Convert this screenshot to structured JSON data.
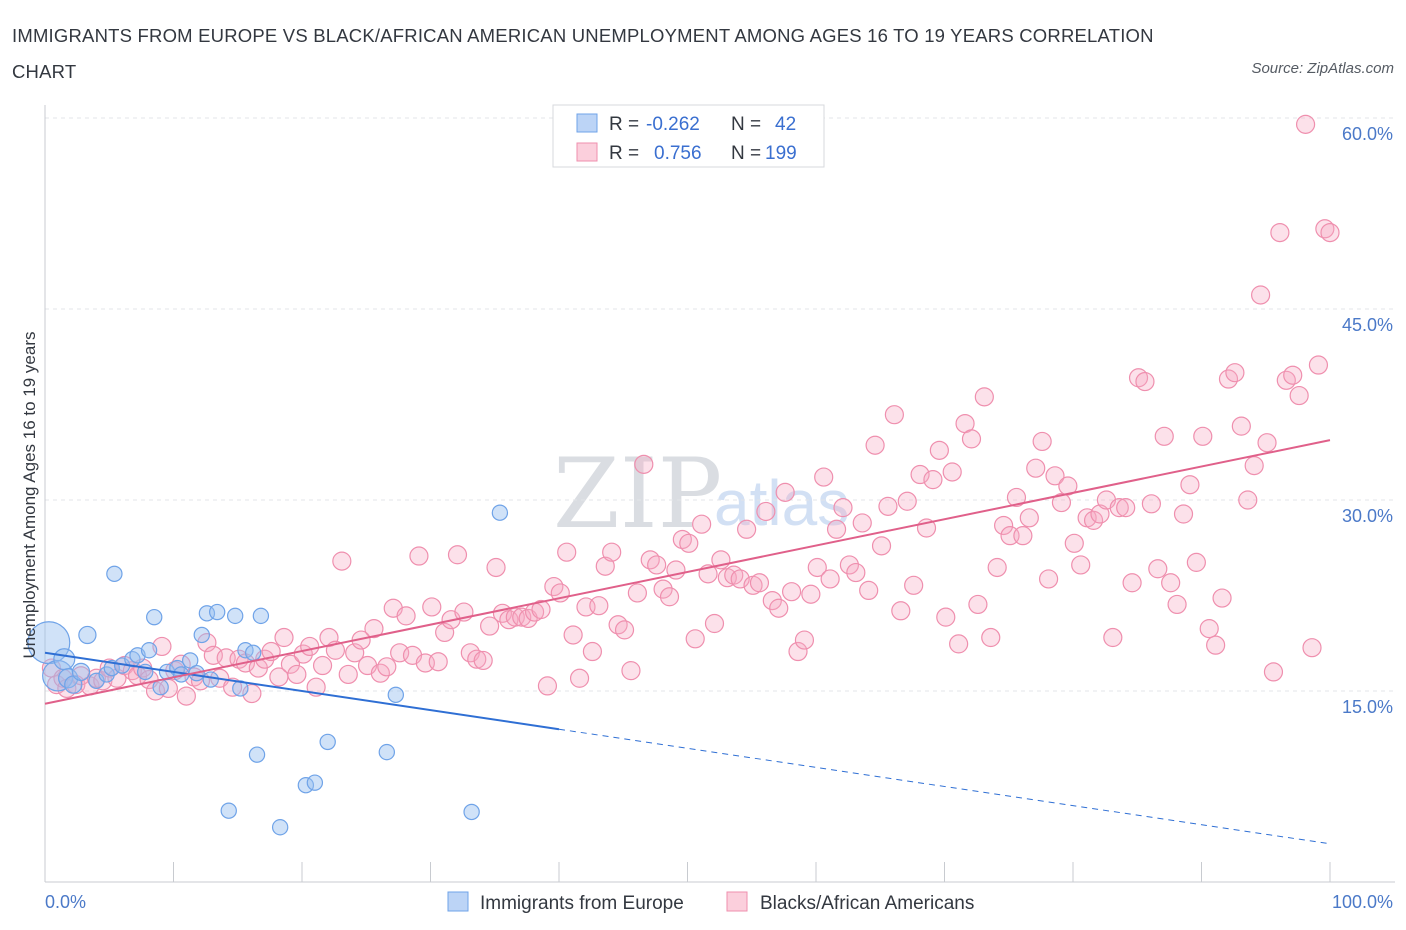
{
  "title": "IMMIGRANTS FROM EUROPE VS BLACK/AFRICAN AMERICAN UNEMPLOYMENT AMONG AGES 16 TO 19 YEARS CORRELATION CHART",
  "source": "Source: ZipAtlas.com",
  "watermark": {
    "zip": "ZIP",
    "atlas": "atlas"
  },
  "colors": {
    "blue": "#6fa3e8",
    "blue_line": "#2f6fd4",
    "pink": "#ef8fae",
    "pink_line": "#e0608a",
    "tick": "#4b79c8"
  },
  "legend": {
    "rows": [
      {
        "r_label": "R =",
        "r_value": "-0.262",
        "n_label": "N =",
        "n_value": "42"
      },
      {
        "r_label": "R =",
        "r_value": "0.756",
        "n_label": "N =",
        "n_value": "199"
      }
    ]
  },
  "chart_data": {
    "type": "scatter",
    "title": "IMMIGRANTS FROM EUROPE VS BLACK/AFRICAN AMERICAN UNEMPLOYMENT AMONG AGES 16 TO 19 YEARS CORRELATION CHART",
    "xlabel": "",
    "ylabel": "Unemployment Among Ages 16 to 19 years",
    "xlim": [
      0,
      100
    ],
    "ylim": [
      0,
      60
    ],
    "x_tick_labels": [
      "0.0%",
      "100.0%"
    ],
    "y_ticks": [
      15,
      30,
      45,
      60
    ],
    "y_tick_labels": [
      "15.0%",
      "30.0%",
      "45.0%",
      "60.0%"
    ],
    "grid": true,
    "legend_position": "top-center",
    "series": [
      {
        "name": "Immigrants from Europe",
        "R": -0.262,
        "N": 42,
        "trend": {
          "x0": 0,
          "y0": 18.0,
          "x1": 40,
          "y1": 12.0,
          "dash_to_x": 100,
          "dash_to_y": 3.0
        },
        "points": [
          [
            0.3,
            18.8,
            2.2
          ],
          [
            1.0,
            16.2,
            1.6
          ],
          [
            1.5,
            17.5,
            1.1
          ],
          [
            1.8,
            16.0,
            1.0
          ],
          [
            2.2,
            15.5,
            0.9
          ],
          [
            2.8,
            16.5,
            0.9
          ],
          [
            3.3,
            19.4,
            0.9
          ],
          [
            4.0,
            15.8,
            0.8
          ],
          [
            4.8,
            16.3,
            0.8
          ],
          [
            5.2,
            16.8,
            0.8
          ],
          [
            5.4,
            24.2,
            0.8
          ],
          [
            6.0,
            17.0,
            0.8
          ],
          [
            6.8,
            17.5,
            0.8
          ],
          [
            7.2,
            17.8,
            0.8
          ],
          [
            7.8,
            16.5,
            0.8
          ],
          [
            8.1,
            18.2,
            0.8
          ],
          [
            8.5,
            20.8,
            0.8
          ],
          [
            9.0,
            15.3,
            0.8
          ],
          [
            9.5,
            16.5,
            0.8
          ],
          [
            10.3,
            16.8,
            0.8
          ],
          [
            10.6,
            16.3,
            0.8
          ],
          [
            11.3,
            17.4,
            0.8
          ],
          [
            11.8,
            16.4,
            0.8
          ],
          [
            12.2,
            19.4,
            0.8
          ],
          [
            12.6,
            21.1,
            0.8
          ],
          [
            12.9,
            15.9,
            0.8
          ],
          [
            13.4,
            21.2,
            0.8
          ],
          [
            14.3,
            5.6,
            0.8
          ],
          [
            14.8,
            20.9,
            0.8
          ],
          [
            15.2,
            15.2,
            0.8
          ],
          [
            15.6,
            18.2,
            0.8
          ],
          [
            16.2,
            18.0,
            0.8
          ],
          [
            16.5,
            10.0,
            0.8
          ],
          [
            16.8,
            20.9,
            0.8
          ],
          [
            18.3,
            4.3,
            0.8
          ],
          [
            20.3,
            7.6,
            0.8
          ],
          [
            21.0,
            7.8,
            0.8
          ],
          [
            22.0,
            11.0,
            0.8
          ],
          [
            26.6,
            10.2,
            0.8
          ],
          [
            27.3,
            14.7,
            0.8
          ],
          [
            33.2,
            5.5,
            0.8
          ],
          [
            35.4,
            29.0,
            0.8
          ]
        ]
      },
      {
        "name": "Blacks/African Americans",
        "R": 0.756,
        "N": 199,
        "trend": {
          "x0": 0,
          "y0": 14.0,
          "x1": 100,
          "y1": 34.7
        },
        "points": [
          [
            0.5,
            16.8
          ],
          [
            0.9,
            15.5
          ],
          [
            1.4,
            16.0
          ],
          [
            1.7,
            15.2
          ],
          [
            2.4,
            15.5
          ],
          [
            2.8,
            16.2
          ],
          [
            3.5,
            15.4
          ],
          [
            4.0,
            16.0
          ],
          [
            4.5,
            15.8
          ],
          [
            5.0,
            16.8
          ],
          [
            5.6,
            16.0
          ],
          [
            6.2,
            17.0
          ],
          [
            6.8,
            16.6
          ],
          [
            7.2,
            16.2
          ],
          [
            7.6,
            16.8
          ],
          [
            8.1,
            15.9
          ],
          [
            8.6,
            15.0
          ],
          [
            9.1,
            18.5
          ],
          [
            9.6,
            15.2
          ],
          [
            10.1,
            16.6
          ],
          [
            10.6,
            17.1
          ],
          [
            11.0,
            14.6
          ],
          [
            11.6,
            16.1
          ],
          [
            12.1,
            15.8
          ],
          [
            12.6,
            18.8
          ],
          [
            13.1,
            17.8
          ],
          [
            13.6,
            16.0
          ],
          [
            14.1,
            17.6
          ],
          [
            14.6,
            15.3
          ],
          [
            15.1,
            17.5
          ],
          [
            15.6,
            17.2
          ],
          [
            16.1,
            14.8
          ],
          [
            16.6,
            16.8
          ],
          [
            17.1,
            17.5
          ],
          [
            17.6,
            18.1
          ],
          [
            18.2,
            16.1
          ],
          [
            18.6,
            19.2
          ],
          [
            19.1,
            17.1
          ],
          [
            19.6,
            16.3
          ],
          [
            20.1,
            17.9
          ],
          [
            20.6,
            18.5
          ],
          [
            21.1,
            15.3
          ],
          [
            21.6,
            17.0
          ],
          [
            22.1,
            19.2
          ],
          [
            22.6,
            18.2
          ],
          [
            23.1,
            25.2
          ],
          [
            23.6,
            16.3
          ],
          [
            24.1,
            18.0
          ],
          [
            24.6,
            19.0
          ],
          [
            25.1,
            17.0
          ],
          [
            25.6,
            19.9
          ],
          [
            26.1,
            16.4
          ],
          [
            26.6,
            16.9
          ],
          [
            27.1,
            21.5
          ],
          [
            27.6,
            18.0
          ],
          [
            28.1,
            20.9
          ],
          [
            28.6,
            17.8
          ],
          [
            29.1,
            25.6
          ],
          [
            29.6,
            17.2
          ],
          [
            30.1,
            21.6
          ],
          [
            30.6,
            17.3
          ],
          [
            31.1,
            19.6
          ],
          [
            31.6,
            20.6
          ],
          [
            32.1,
            25.7
          ],
          [
            32.6,
            21.2
          ],
          [
            33.1,
            18.0
          ],
          [
            33.6,
            17.5
          ],
          [
            34.1,
            17.4
          ],
          [
            34.6,
            20.1
          ],
          [
            35.1,
            24.7
          ],
          [
            35.6,
            21.1
          ],
          [
            36.1,
            20.6
          ],
          [
            36.6,
            20.8
          ],
          [
            37.1,
            20.8
          ],
          [
            37.6,
            20.7
          ],
          [
            38.1,
            21.2
          ],
          [
            38.6,
            21.4
          ],
          [
            39.1,
            15.4
          ],
          [
            39.6,
            23.2
          ],
          [
            40.1,
            22.7
          ],
          [
            40.6,
            25.9
          ],
          [
            41.1,
            19.4
          ],
          [
            41.6,
            16.0
          ],
          [
            42.1,
            21.6
          ],
          [
            42.6,
            18.1
          ],
          [
            43.1,
            21.7
          ],
          [
            43.6,
            24.8
          ],
          [
            44.1,
            25.9
          ],
          [
            44.6,
            20.2
          ],
          [
            45.1,
            19.8
          ],
          [
            45.6,
            16.6
          ],
          [
            46.1,
            22.7
          ],
          [
            46.6,
            32.8
          ],
          [
            47.1,
            25.3
          ],
          [
            47.6,
            24.9
          ],
          [
            48.1,
            23.0
          ],
          [
            48.6,
            22.4
          ],
          [
            49.1,
            24.5
          ],
          [
            49.6,
            26.9
          ],
          [
            50.1,
            26.6
          ],
          [
            50.6,
            19.1
          ],
          [
            51.1,
            28.1
          ],
          [
            51.6,
            24.2
          ],
          [
            52.1,
            20.3
          ],
          [
            52.6,
            25.3
          ],
          [
            53.1,
            23.9
          ],
          [
            53.6,
            24.1
          ],
          [
            54.1,
            23.8
          ],
          [
            54.6,
            27.7
          ],
          [
            55.1,
            23.3
          ],
          [
            55.6,
            23.5
          ],
          [
            56.1,
            29.1
          ],
          [
            56.6,
            22.1
          ],
          [
            57.1,
            21.5
          ],
          [
            57.6,
            30.6
          ],
          [
            58.1,
            22.8
          ],
          [
            58.6,
            18.1
          ],
          [
            59.1,
            19.0
          ],
          [
            59.6,
            22.6
          ],
          [
            60.1,
            24.7
          ],
          [
            60.6,
            31.8
          ],
          [
            61.1,
            23.8
          ],
          [
            61.6,
            27.7
          ],
          [
            62.1,
            29.4
          ],
          [
            62.6,
            24.9
          ],
          [
            63.1,
            24.3
          ],
          [
            63.6,
            28.2
          ],
          [
            64.1,
            22.9
          ],
          [
            64.6,
            34.3
          ],
          [
            65.1,
            26.4
          ],
          [
            65.6,
            29.5
          ],
          [
            66.1,
            36.7
          ],
          [
            66.6,
            21.3
          ],
          [
            67.1,
            29.9
          ],
          [
            67.6,
            23.3
          ],
          [
            68.1,
            32.0
          ],
          [
            68.6,
            27.8
          ],
          [
            69.1,
            31.6
          ],
          [
            69.6,
            33.9
          ],
          [
            70.1,
            20.8
          ],
          [
            70.6,
            32.2
          ],
          [
            71.1,
            18.7
          ],
          [
            71.6,
            36.0
          ],
          [
            72.1,
            34.8
          ],
          [
            72.6,
            21.8
          ],
          [
            73.1,
            38.1
          ],
          [
            73.6,
            19.2
          ],
          [
            74.1,
            24.7
          ],
          [
            74.6,
            28.0
          ],
          [
            75.1,
            27.2
          ],
          [
            75.6,
            30.2
          ],
          [
            76.1,
            27.2
          ],
          [
            76.6,
            28.6
          ],
          [
            77.1,
            32.5
          ],
          [
            77.6,
            34.6
          ],
          [
            78.1,
            23.8
          ],
          [
            78.6,
            31.9
          ],
          [
            79.1,
            29.8
          ],
          [
            79.6,
            31.1
          ],
          [
            80.1,
            26.6
          ],
          [
            80.6,
            24.9
          ],
          [
            81.1,
            28.6
          ],
          [
            81.6,
            28.4
          ],
          [
            82.1,
            28.9
          ],
          [
            82.6,
            30.0
          ],
          [
            83.1,
            19.2
          ],
          [
            83.6,
            29.4
          ],
          [
            84.1,
            29.4
          ],
          [
            84.6,
            23.5
          ],
          [
            85.1,
            39.6
          ],
          [
            85.6,
            39.3
          ],
          [
            86.1,
            29.7
          ],
          [
            86.6,
            24.6
          ],
          [
            87.1,
            35.0
          ],
          [
            87.6,
            23.5
          ],
          [
            88.1,
            21.8
          ],
          [
            88.6,
            28.9
          ],
          [
            89.1,
            31.2
          ],
          [
            89.6,
            25.1
          ],
          [
            90.1,
            35.0
          ],
          [
            90.6,
            19.9
          ],
          [
            91.1,
            18.6
          ],
          [
            91.6,
            22.3
          ],
          [
            92.1,
            39.5
          ],
          [
            92.6,
            40.0
          ],
          [
            93.1,
            35.8
          ],
          [
            93.6,
            30.0
          ],
          [
            94.1,
            32.7
          ],
          [
            94.6,
            46.1
          ],
          [
            95.1,
            34.5
          ],
          [
            95.6,
            16.5
          ],
          [
            96.1,
            51.0
          ],
          [
            96.6,
            39.4
          ],
          [
            97.1,
            39.8
          ],
          [
            97.6,
            38.2
          ],
          [
            98.1,
            59.5
          ],
          [
            98.6,
            18.4
          ],
          [
            99.1,
            40.6
          ],
          [
            99.6,
            51.3
          ],
          [
            100.0,
            51.0
          ]
        ]
      }
    ]
  },
  "bottom_legend": [
    "Immigrants from Europe",
    "Blacks/African Americans"
  ]
}
